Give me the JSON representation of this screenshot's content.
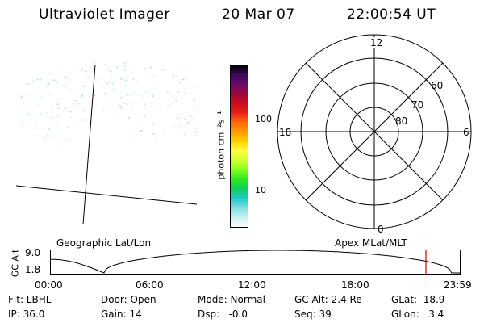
{
  "header": {
    "instrument": "Ultraviolet Imager",
    "date": "20 Mar 07",
    "time": "22:00:54 UT"
  },
  "colorbar": {
    "label": "photon cm⁻²s⁻¹",
    "ticks": [
      "100",
      "10"
    ],
    "colors": [
      "#000000",
      "#3a0a5a",
      "#6a0a6a",
      "#9a0a3a",
      "#c80a1a",
      "#e8201a",
      "#ff6a0a",
      "#ff9a00",
      "#ffd000",
      "#ffff40",
      "#d0ff30",
      "#80ff20",
      "#30e820",
      "#10d060",
      "#20c8c8",
      "#80e0e0",
      "#c8f0f0",
      "#ffffff"
    ]
  },
  "polar": {
    "mlt_labels": [
      "12",
      "18",
      "6",
      "0"
    ],
    "lat_labels": [
      "60",
      "70",
      "80"
    ]
  },
  "timeline": {
    "left_title": "Geographic Lat/Lon",
    "right_title": "Apex MLat/MLT",
    "y_axis_label": "GC Alt",
    "y_ticks": [
      "9.0",
      "1.8"
    ],
    "x_ticks": [
      "00:00",
      "06:00",
      "12:00",
      "18:00",
      "23:59"
    ],
    "marker_color": "#cc0000"
  },
  "status": {
    "flt": "Flt: LBHL",
    "ip": "IP: 36.0",
    "door": "Door: Open",
    "gain": "Gain: 14",
    "mode": "Mode: Normal",
    "dsp": "Dsp:   -0.0",
    "gcalt": "GC Alt: 2.4 Re",
    "seq": "Seq: 39",
    "glat": "GLat:  18.9",
    "glon": "GLon:   3.4"
  }
}
